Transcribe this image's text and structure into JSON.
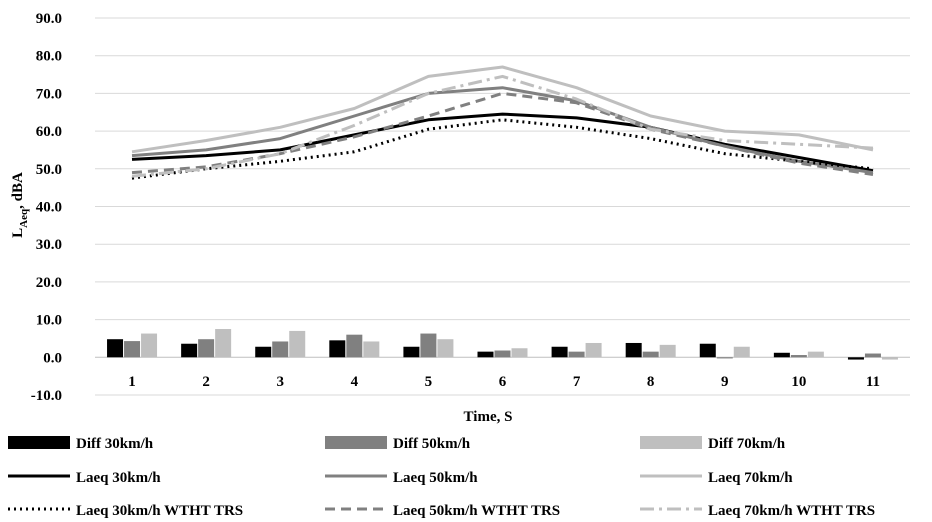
{
  "chart_data": {
    "type": "bar+line",
    "title": "",
    "xlabel": "Time, S",
    "ylabel": {
      "main": "L",
      "sub": "Aeq",
      "rest": ", dBA"
    },
    "ylim": [
      -10,
      90
    ],
    "ytick_step": 10,
    "ytick_labels": [
      "-10.0",
      "0.0",
      "10.0",
      "20.0",
      "30.0",
      "40.0",
      "50.0",
      "60.0",
      "70.0",
      "80.0",
      "90.0"
    ],
    "categories": [
      "1",
      "2",
      "3",
      "4",
      "5",
      "6",
      "7",
      "8",
      "9",
      "10",
      "11"
    ],
    "grid": true,
    "legend_position": "bottom",
    "bar_series": [
      {
        "name": "Diff 30km/h",
        "color": "#000000",
        "values": [
          4.8,
          3.6,
          2.8,
          4.5,
          2.8,
          1.5,
          2.8,
          3.8,
          3.6,
          1.2,
          -0.6
        ]
      },
      {
        "name": "Diff 50km/h",
        "color": "#808080",
        "values": [
          4.3,
          4.8,
          4.2,
          6.0,
          6.3,
          1.8,
          1.5,
          1.5,
          -0.3,
          0.6,
          1.0
        ]
      },
      {
        "name": "Diff 70km/h",
        "color": "#bfbfbf",
        "values": [
          6.3,
          7.5,
          7.0,
          4.2,
          4.8,
          2.4,
          3.8,
          3.3,
          2.8,
          1.5,
          -0.6
        ]
      }
    ],
    "line_series": [
      {
        "name": "Laeq 30km/h",
        "color": "#000000",
        "dash": "solid",
        "values": [
          52.5,
          53.5,
          55.0,
          59.0,
          63.0,
          64.5,
          63.5,
          61.0,
          56.5,
          53.0,
          49.5
        ]
      },
      {
        "name": "Laeq 50km/h",
        "color": "#808080",
        "dash": "solid",
        "values": [
          53.5,
          55.0,
          58.0,
          64.0,
          70.0,
          71.5,
          68.0,
          61.0,
          56.0,
          52.0,
          49.0
        ]
      },
      {
        "name": "Laeq 70km/h",
        "color": "#bfbfbf",
        "dash": "solid",
        "values": [
          54.5,
          57.5,
          61.0,
          66.0,
          74.5,
          77.0,
          71.5,
          64.0,
          60.0,
          59.0,
          55.0
        ]
      },
      {
        "name": "Laeq 30km/h WTHT TRS",
        "color": "#000000",
        "dash": "dotted",
        "values": [
          47.5,
          50.0,
          52.0,
          54.5,
          60.5,
          63.0,
          61.0,
          58.0,
          54.0,
          52.0,
          50.0
        ]
      },
      {
        "name": "Laeq 50km/h WTHT TRS",
        "color": "#808080",
        "dash": "dashed",
        "values": [
          49.0,
          50.5,
          54.0,
          58.5,
          64.0,
          70.0,
          67.5,
          60.5,
          56.0,
          51.5,
          48.5
        ]
      },
      {
        "name": "Laeq 70km/h WTHT TRS",
        "color": "#bfbfbf",
        "dash": "dashdot",
        "values": [
          48.0,
          50.0,
          54.0,
          61.5,
          70.0,
          74.5,
          68.5,
          60.5,
          57.5,
          56.5,
          55.5
        ]
      }
    ]
  }
}
